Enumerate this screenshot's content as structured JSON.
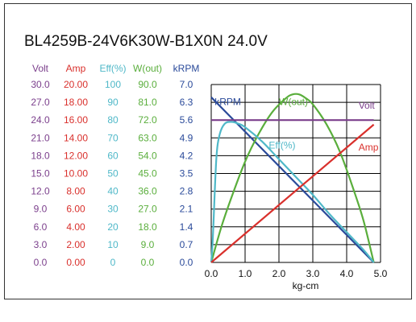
{
  "chart_data": {
    "type": "line",
    "title": "BL4259B-24V6K30W-B1X0N   24.0V",
    "xlabel": "kg-cm",
    "xlim": [
      0,
      5.0
    ],
    "x_ticks": [
      "0.0",
      "1.0",
      "2.0",
      "3.0",
      "4.0",
      "5.0"
    ],
    "grid": true,
    "scales": [
      {
        "name": "Volt",
        "color": "#7b3f8c",
        "ticks": [
          "30.0",
          "27.0",
          "24.0",
          "21.0",
          "18.0",
          "15.0",
          "12.0",
          "9.0",
          "6.0",
          "3.0",
          "0.0"
        ]
      },
      {
        "name": "Amp",
        "color": "#d9302c",
        "ticks": [
          "20.00",
          "18.00",
          "16.00",
          "14.00",
          "12.00",
          "10.00",
          "8.00",
          "6.00",
          "4.00",
          "2.00",
          "0.00"
        ]
      },
      {
        "name": "Eff(%)",
        "color": "#4fb8c8",
        "ticks": [
          "100",
          "90",
          "80",
          "70",
          "60",
          "50",
          "40",
          "30",
          "20",
          "10",
          "0"
        ]
      },
      {
        "name": "W(out)",
        "color": "#5aae3c",
        "ticks": [
          "90.0",
          "81.0",
          "72.0",
          "63.0",
          "54.0",
          "45.0",
          "36.0",
          "27.0",
          "18.0",
          "9.0",
          "0.0"
        ]
      },
      {
        "name": "kRPM",
        "color": "#2a4a9a",
        "ticks": [
          "7.0",
          "6.3",
          "5.6",
          "4.9",
          "4.2",
          "3.5",
          "2.8",
          "2.1",
          "1.4",
          "0.7",
          "0.0"
        ]
      }
    ],
    "series": [
      {
        "name": "kRPM",
        "color": "#2a4a9a",
        "ymax": 7.0,
        "x": [
          0.0,
          4.8
        ],
        "y": [
          6.5,
          0.0
        ]
      },
      {
        "name": "W(out)",
        "color": "#5aae3c",
        "ymax": 90.0,
        "x": [
          0.0,
          0.3,
          0.6,
          1.0,
          1.4,
          1.8,
          2.2,
          2.4,
          2.6,
          2.8,
          3.0,
          3.4,
          3.8,
          4.2,
          4.5,
          4.8
        ],
        "y": [
          0.0,
          18.0,
          33.0,
          51.0,
          65.0,
          76.0,
          83.0,
          85.0,
          85.0,
          83.0,
          80.0,
          70.0,
          56.0,
          37.0,
          21.0,
          0.0
        ]
      },
      {
        "name": "Eff(%",
        "color": "#4fb8c8",
        "ymax": 100.0,
        "x": [
          0.0,
          0.05,
          0.15,
          0.25,
          0.4,
          0.6,
          0.8,
          1.0,
          1.5,
          2.0,
          2.5,
          3.0,
          3.5,
          4.0,
          4.5,
          4.8
        ],
        "y": [
          0.0,
          15.0,
          58.0,
          72.0,
          78.0,
          79.0,
          78.0,
          76.0,
          68.0,
          58.0,
          48.0,
          38.0,
          27.0,
          17.0,
          7.0,
          0.0
        ]
      },
      {
        "name": "Amp",
        "color": "#d9302c",
        "ymax": 20.0,
        "x": [
          0.0,
          4.8
        ],
        "y": [
          0.0,
          15.5
        ]
      },
      {
        "name": "Volt",
        "color": "#7b3f8c",
        "ymax": 30.0,
        "x": [
          0.0,
          4.8
        ],
        "y": [
          24.0,
          24.0
        ]
      }
    ],
    "curve_labels": [
      {
        "series": "kRPM",
        "text": "kRPM",
        "x": 0.1,
        "y_frac": 0.885
      },
      {
        "series": "W(out)",
        "text": "W(out)",
        "x": 2.0,
        "y_frac": 0.885
      },
      {
        "series": "Volt",
        "text": "Volt",
        "x": 4.35,
        "y_frac": 0.865
      },
      {
        "series": "Eff(%",
        "text": "Eff(%)",
        "x": 1.7,
        "y_frac": 0.64
      },
      {
        "series": "Amp",
        "text": "Amp",
        "x": 4.35,
        "y_frac": 0.63
      }
    ]
  }
}
